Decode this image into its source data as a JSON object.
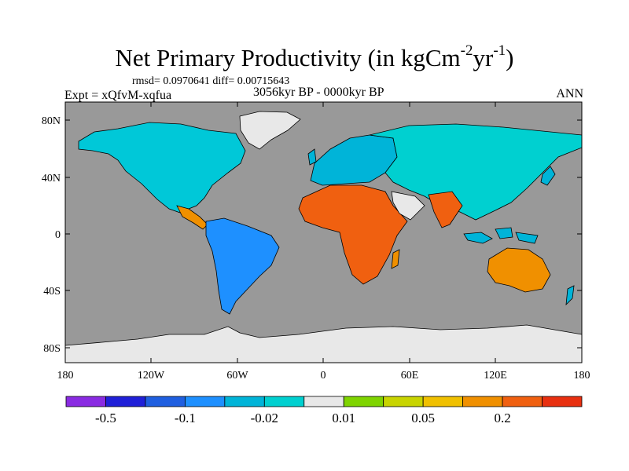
{
  "title": {
    "main": "Net Primary Productivity (in kgCm",
    "exp1": "-2",
    "mid": "yr",
    "exp2": "-1",
    "end": ")"
  },
  "stats": "rmsd= 0.0970641 diff= 0.00715643",
  "experiment": "Expt = xQfvM-xqfua",
  "period": "3056kyr BP - 0000kyr BP",
  "season": "ANN",
  "map": {
    "lat_labels": [
      "80N",
      "40N",
      "0",
      "40S",
      "80S"
    ],
    "lon_labels": [
      "180",
      "120W",
      "60W",
      "0",
      "60E",
      "120E",
      "180"
    ],
    "ocean_color": "#999999",
    "ice_color": "#e8e8e8"
  },
  "colorbar": {
    "colors": [
      "#8a2be2",
      "#2020d8",
      "#1f5fe0",
      "#1e90ff",
      "#00b4d8",
      "#00d0d0",
      "#e8e8e8",
      "#7fd400",
      "#c8d400",
      "#f0c000",
      "#f09000",
      "#f06010",
      "#e83010"
    ],
    "labels": [
      "-0.5",
      "-0.1",
      "-0.02",
      "0.01",
      "0.05",
      "0.2"
    ]
  }
}
